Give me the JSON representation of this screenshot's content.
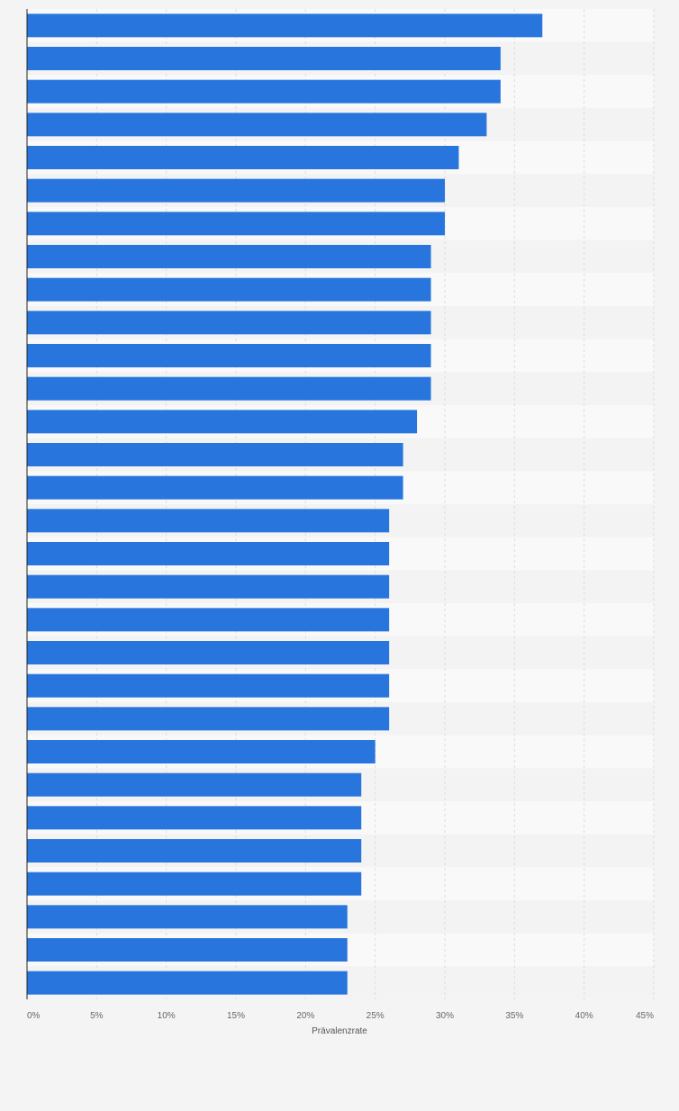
{
  "chart_data": {
    "type": "bar",
    "orientation": "horizontal",
    "xlabel": "Prävalenzrate",
    "xlim": [
      0,
      45
    ],
    "x_ticks": [
      "0%",
      "5%",
      "10%",
      "15%",
      "20%",
      "25%",
      "30%",
      "35%",
      "40%",
      "45%"
    ],
    "x_tick_values": [
      0,
      5,
      10,
      15,
      20,
      25,
      30,
      35,
      40,
      45
    ],
    "grid": true,
    "values": [
      37,
      34,
      34,
      33,
      31,
      30,
      30,
      29,
      29,
      29,
      29,
      29,
      28,
      27,
      27,
      26,
      26,
      26,
      26,
      26,
      26,
      26,
      25,
      24,
      24,
      24,
      24,
      23,
      23,
      23
    ]
  },
  "colors": {
    "bar": "#2876dd",
    "background": "#f4f4f4",
    "band_light": "#f9f9f9",
    "band_dark": "#f3f3f3",
    "grid": "#dddddd",
    "axis": "#222222"
  }
}
